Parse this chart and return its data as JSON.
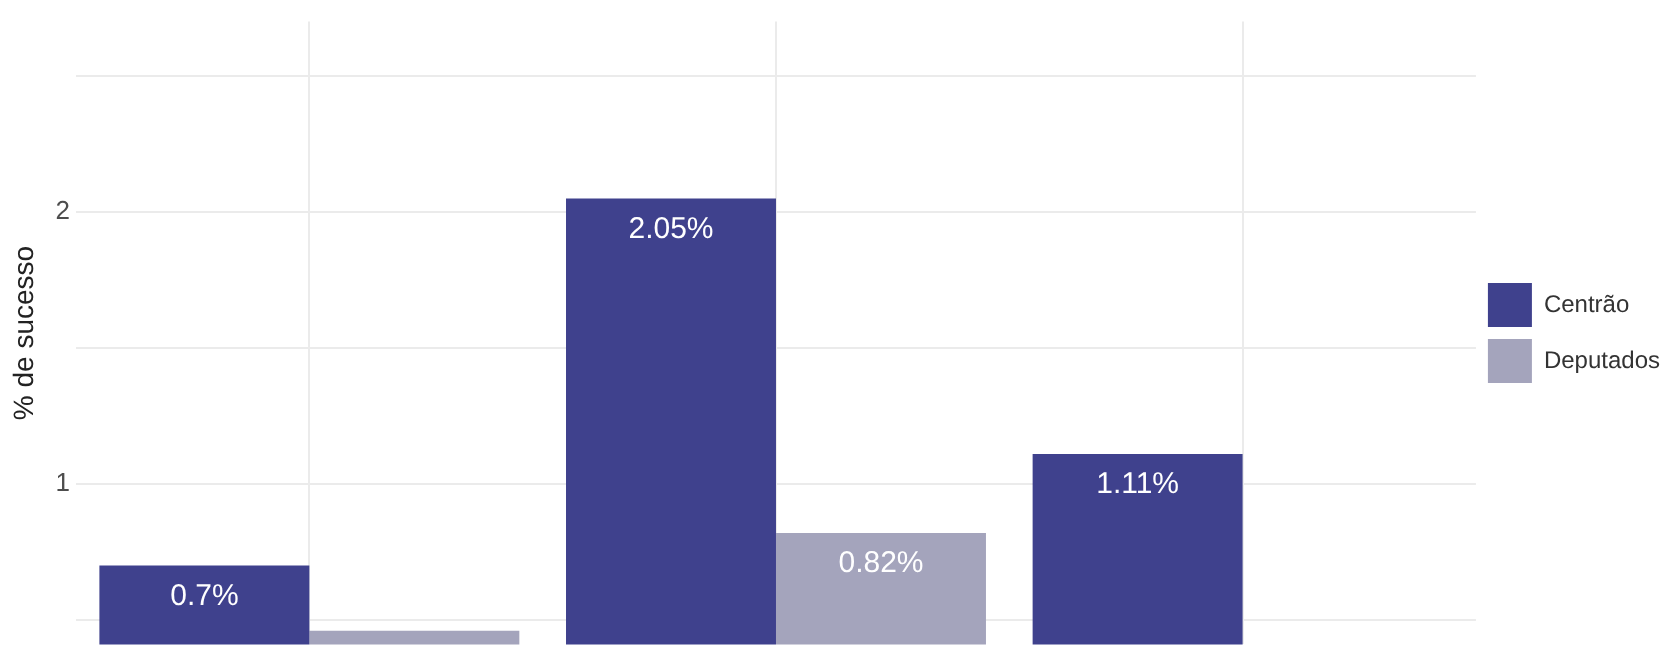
{
  "chart_data": {
    "type": "bar",
    "ylabel": "% de sucesso",
    "categories": [
      null,
      null,
      null
    ],
    "series": [
      {
        "name": "Centrão",
        "color": "#3f418d",
        "values": [
          0.7,
          2.05,
          1.11
        ],
        "value_labels": [
          "0.7%",
          "2.05%",
          "1.11%"
        ]
      },
      {
        "name": "Deputados",
        "color": "#a4a4bc",
        "values": [
          0.46,
          0.82,
          null
        ],
        "value_labels": [
          null,
          "0.82%",
          null
        ]
      }
    ],
    "ylim": [
      0.41,
      2.7
    ],
    "yticks": [
      {
        "value": 0.5,
        "label": null
      },
      1,
      {
        "value": 1.5,
        "label": null
      },
      2,
      {
        "value": 2.5,
        "label": null
      }
    ],
    "grid": true,
    "legend": "right"
  }
}
